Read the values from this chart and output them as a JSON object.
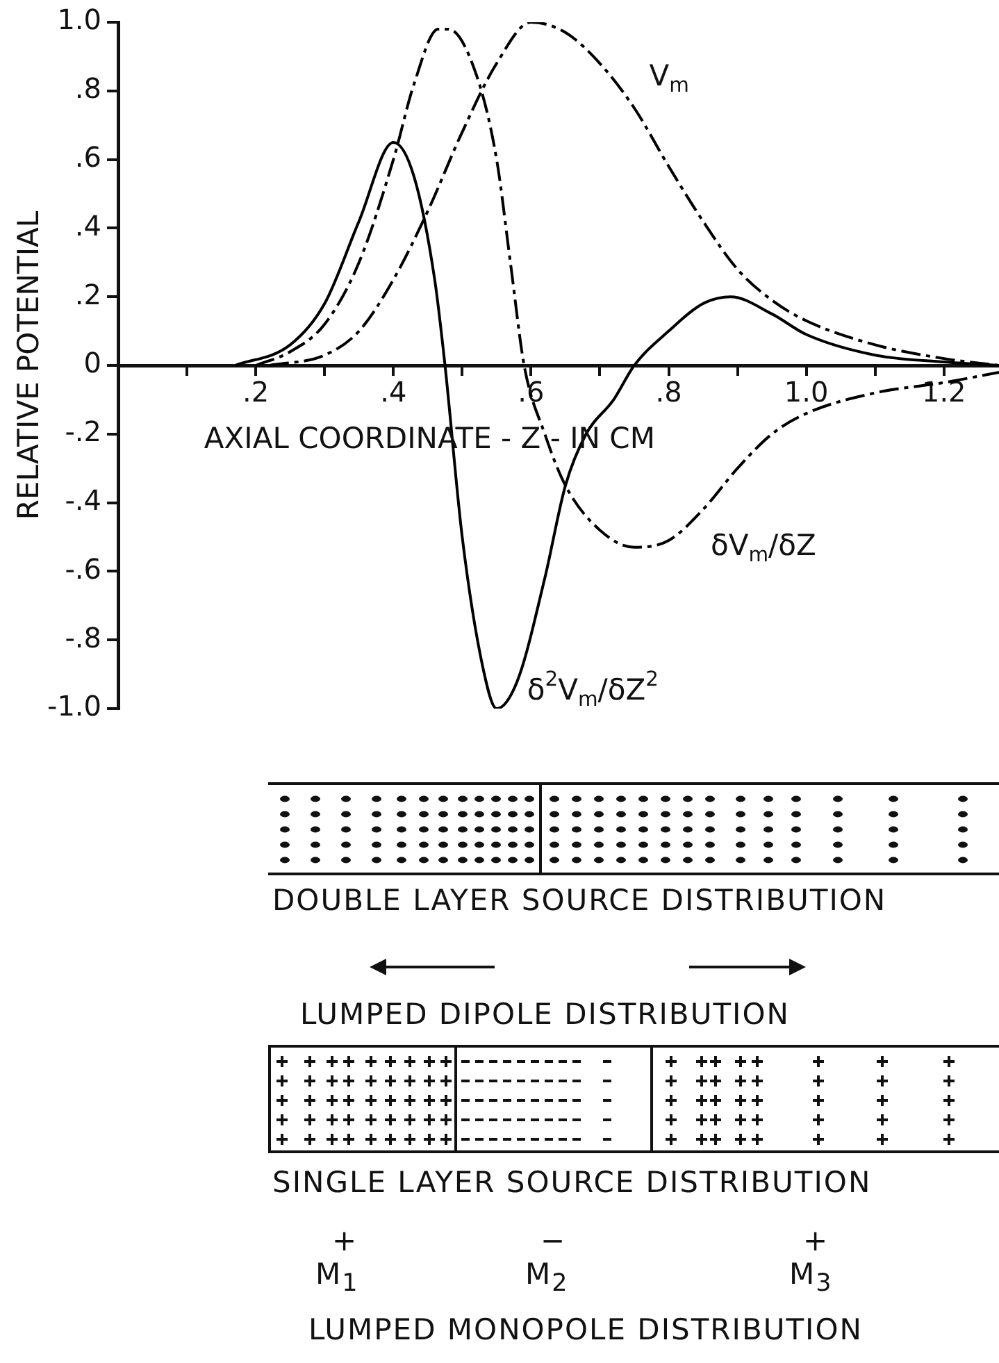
{
  "chart_data": {
    "type": "line",
    "xlabel": "AXIAL COORDINATE - Z - IN CM",
    "ylabel": "RELATIVE POTENTIAL",
    "xlim": [
      0,
      1.28
    ],
    "xticks": [
      {
        "value": 0.1,
        "label": null
      },
      {
        "value": 0.2,
        "label": ".2"
      },
      {
        "value": 0.3,
        "label": null
      },
      {
        "value": 0.4,
        "label": ".4"
      },
      {
        "value": 0.5,
        "label": null
      },
      {
        "value": 0.6,
        "label": ".6"
      },
      {
        "value": 0.7,
        "label": null
      },
      {
        "value": 0.8,
        "label": ".8"
      },
      {
        "value": 0.9,
        "label": null
      },
      {
        "value": 1.0,
        "label": "1.0"
      },
      {
        "value": 1.1,
        "label": null
      },
      {
        "value": 1.2,
        "label": "1.2"
      }
    ],
    "ylim": [
      -1,
      1
    ],
    "yticks": [
      {
        "value": -1,
        "label": "-1.0"
      },
      {
        "value": -0.8,
        "label": "-.8"
      },
      {
        "value": -0.6,
        "label": "-.6"
      },
      {
        "value": -0.4,
        "label": "-.4"
      },
      {
        "value": -0.2,
        "label": "-.2"
      },
      0,
      {
        "value": 0.2,
        "label": ".2"
      },
      {
        "value": 0.4,
        "label": ".4"
      },
      {
        "value": 0.6,
        "label": ".6"
      },
      {
        "value": 0.8,
        "label": ".8"
      },
      {
        "value": 1,
        "label": "1.0"
      }
    ],
    "grid": false,
    "legend": false,
    "marker": "none",
    "series": [
      {
        "name": "V$_{m}$",
        "color": "#000000",
        "line_style": "dashed",
        "x": [
          0.22,
          0.3,
          0.35,
          0.4,
          0.45,
          0.5,
          0.55,
          0.6,
          0.65,
          0.7,
          0.75,
          0.8,
          0.85,
          0.9,
          0.95,
          1.0,
          1.1,
          1.2,
          1.28
        ],
        "values": [
          0,
          0.03,
          0.1,
          0.25,
          0.45,
          0.68,
          0.88,
          1.0,
          0.97,
          0.88,
          0.75,
          0.58,
          0.42,
          0.28,
          0.19,
          0.13,
          0.06,
          0.02,
          0
        ]
      },
      {
        "name": "δV$_{m}$/δZ",
        "color": "#000000",
        "line_style": "dashed",
        "x": [
          0.2,
          0.25,
          0.3,
          0.35,
          0.4,
          0.43,
          0.465,
          0.48,
          0.52,
          0.55,
          0.57,
          0.59,
          0.62,
          0.65,
          0.7,
          0.75,
          0.8,
          0.85,
          0.9,
          0.95,
          1.0,
          1.1,
          1.2,
          1.28
        ],
        "values": [
          0,
          0.04,
          0.12,
          0.3,
          0.6,
          0.82,
          0.98,
          0.98,
          0.85,
          0.6,
          0.3,
          0,
          -0.2,
          -0.35,
          -0.48,
          -0.53,
          -0.51,
          -0.42,
          -0.3,
          -0.2,
          -0.14,
          -0.08,
          -0.05,
          -0.02
        ]
      },
      {
        "name": "δ$^{2}$V$_{m}$/δZ$^{2}$",
        "color": "#000000",
        "line_style": "solid",
        "x": [
          0.17,
          0.25,
          0.3,
          0.35,
          0.4,
          0.43,
          0.46,
          0.475,
          0.5,
          0.53,
          0.55,
          0.58,
          0.62,
          0.65,
          0.68,
          0.72,
          0.75,
          0.8,
          0.85,
          0.89,
          0.95,
          1.0,
          1.1,
          1.2,
          1.28
        ],
        "values": [
          0,
          0.06,
          0.18,
          0.42,
          0.65,
          0.55,
          0.25,
          0,
          -0.5,
          -0.88,
          -1.0,
          -0.92,
          -0.62,
          -0.35,
          -0.2,
          -0.1,
          0,
          0.1,
          0.18,
          0.2,
          0.15,
          0.09,
          0.03,
          0.01,
          0
        ]
      }
    ],
    "annotations": [
      "DOUBLE LAYER SOURCE DISTRIBUTION",
      "LUMPED DIPOLE DISTRIBUTION",
      "SINGLE LAYER SOURCE DISTRIBUTION",
      "+",
      "M$_{1}$",
      "−",
      "M$_{2}$",
      "+",
      "M$_{3}$",
      "LUMPED MONOPOLE DISTRIBUTION"
    ]
  }
}
